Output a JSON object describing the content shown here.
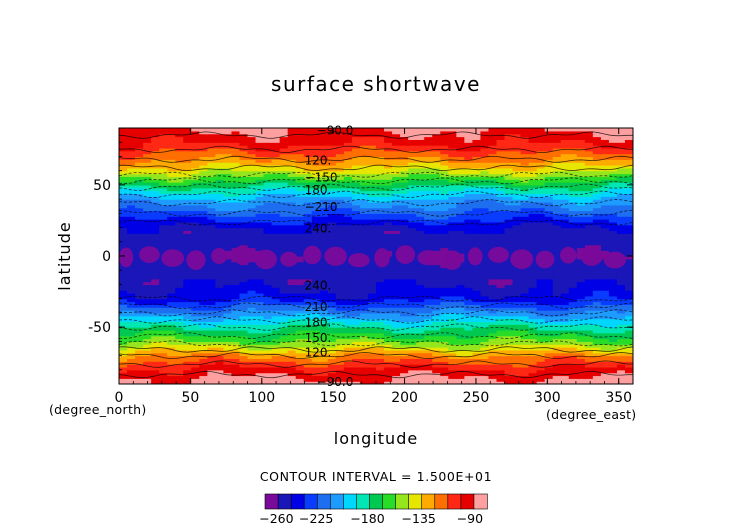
{
  "chart_data": {
    "type": "heatmap",
    "title": "surface shortwave",
    "xlabel": "longitude",
    "ylabel": "latitude",
    "x_unit_label": "(degree_east)",
    "y_unit_label": "(degree_north)",
    "xlim": [
      0,
      360
    ],
    "ylim": [
      -90,
      90
    ],
    "x_ticks": [
      0,
      50,
      100,
      150,
      200,
      250,
      300,
      350
    ],
    "y_ticks": [
      -50,
      0,
      50
    ],
    "contour_interval_label": "CONTOUR INTERVAL = 1.500E+01",
    "colorbar_tick_labels": [
      "−260",
      "−225",
      "−180",
      "−135",
      "−90"
    ],
    "colorbar_range": [
      -270,
      -75
    ],
    "colorbar_colors": [
      "#7a0a9a",
      "#1a16b8",
      "#0000e6",
      "#0a3cff",
      "#1e6ef0",
      "#1e9bff",
      "#00d7ff",
      "#00e6b4",
      "#00c850",
      "#28dc28",
      "#96e61e",
      "#e6e600",
      "#ffaa00",
      "#ff6e00",
      "#ff2814",
      "#e60000",
      "#ffa0a0"
    ],
    "contour_labels_north": [
      "−90.0",
      "120.",
      "−150",
      "180.",
      "−210",
      "240."
    ],
    "contour_labels_south": [
      "240.",
      "210",
      "180.",
      "150.",
      "120.",
      "−90.0"
    ],
    "zonal_mean_profile": {
      "lat": [
        -90,
        -80,
        -70,
        -60,
        -50,
        -40,
        -30,
        -20,
        -10,
        0,
        10,
        20,
        30,
        40,
        50,
        60,
        70,
        80,
        90
      ],
      "value": [
        -80,
        -95,
        -120,
        -155,
        -180,
        -210,
        -240,
        -250,
        -255,
        -258,
        -255,
        -248,
        -225,
        -205,
        -175,
        -140,
        -115,
        -95,
        -85
      ]
    }
  }
}
